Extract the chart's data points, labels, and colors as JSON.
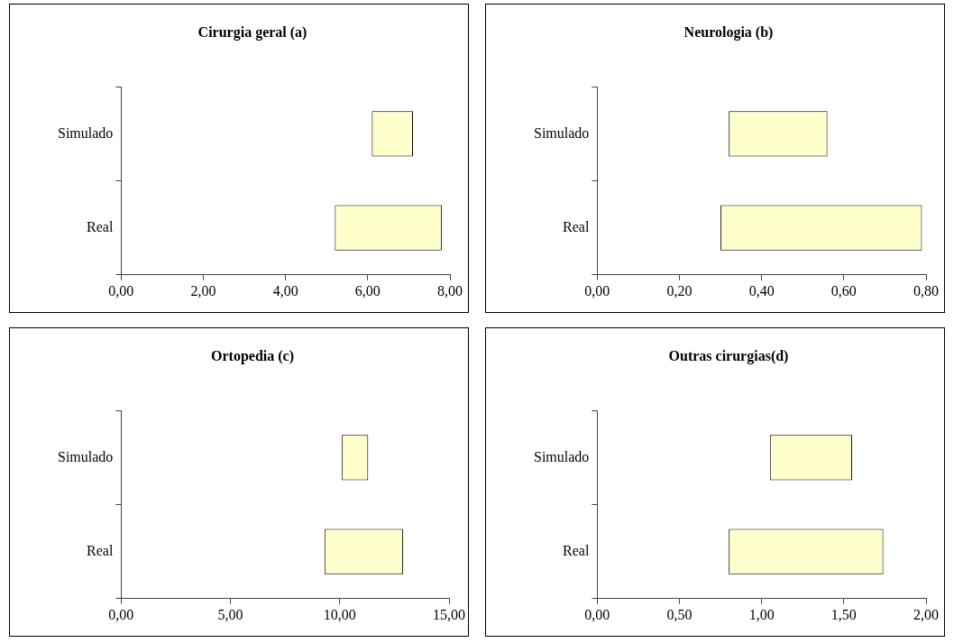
{
  "chart_data": [
    {
      "type": "bar",
      "title": "Cirurgia geral (a)",
      "orientation": "horizontal",
      "categories": [
        "Simulado",
        "Real"
      ],
      "base": [
        6.1,
        5.2
      ],
      "values": [
        1.0,
        2.6
      ],
      "color": "#ffffcc",
      "xlim": [
        0,
        8
      ],
      "xticks": [
        {
          "value": 0,
          "label": "0,00"
        },
        {
          "value": 2,
          "label": "2,00"
        },
        {
          "value": 4,
          "label": "4,00"
        },
        {
          "value": 6,
          "label": "6,00"
        },
        {
          "value": 8,
          "label": "8,00"
        }
      ],
      "grid": false,
      "legend": false
    },
    {
      "type": "bar",
      "title": "Neurologia (b)",
      "orientation": "horizontal",
      "categories": [
        "Simulado",
        "Real"
      ],
      "base": [
        0.32,
        0.3
      ],
      "values": [
        0.24,
        0.49
      ],
      "color": "#ffffcc",
      "xlim": [
        0,
        0.8
      ],
      "xticks": [
        {
          "value": 0,
          "label": "0,00"
        },
        {
          "value": 0.2,
          "label": "0,20"
        },
        {
          "value": 0.4,
          "label": "0,40"
        },
        {
          "value": 0.6,
          "label": "0,60"
        },
        {
          "value": 0.8,
          "label": "0,80"
        }
      ],
      "grid": false,
      "legend": false
    },
    {
      "type": "bar",
      "title": "Ortopedia (c)",
      "orientation": "horizontal",
      "categories": [
        "Simulado",
        "Real"
      ],
      "base": [
        10.1,
        9.3
      ],
      "values": [
        1.2,
        3.6
      ],
      "color": "#ffffcc",
      "xlim": [
        0,
        15
      ],
      "xticks": [
        {
          "value": 0,
          "label": "0,00"
        },
        {
          "value": 5,
          "label": "5,00"
        },
        {
          "value": 10,
          "label": "10,00"
        },
        {
          "value": 15,
          "label": "15,00"
        }
      ],
      "grid": false,
      "legend": false
    },
    {
      "type": "bar",
      "title": "Outras cirurgias(d)",
      "orientation": "horizontal",
      "categories": [
        "Simulado",
        "Real"
      ],
      "base": [
        1.05,
        0.8
      ],
      "values": [
        0.5,
        0.94
      ],
      "color": "#ffffcc",
      "xlim": [
        0,
        2
      ],
      "xticks": [
        {
          "value": 0,
          "label": "0,00"
        },
        {
          "value": 0.5,
          "label": "0,50"
        },
        {
          "value": 1,
          "label": "1,00"
        },
        {
          "value": 1.5,
          "label": "1,50"
        },
        {
          "value": 2,
          "label": "2,00"
        }
      ],
      "grid": false,
      "legend": false
    }
  ]
}
